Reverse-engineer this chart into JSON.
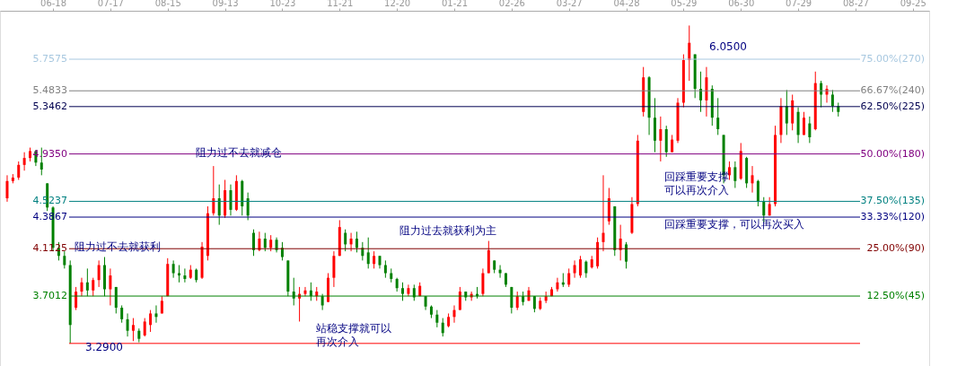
{
  "chart_data": {
    "type": "candlestick",
    "categories": [
      null,
      null,
      null,
      null,
      null,
      null,
      null,
      null,
      "06-18",
      null,
      null,
      null,
      null,
      null,
      null,
      null,
      null,
      null,
      "07-17",
      null,
      null,
      null,
      null,
      null,
      null,
      null,
      null,
      null,
      "08-15",
      null,
      null,
      null,
      null,
      null,
      null,
      null,
      null,
      null,
      "09-13",
      null,
      null,
      null,
      null,
      null,
      null,
      null,
      null,
      null,
      "10-23",
      null,
      null,
      null,
      null,
      null,
      null,
      null,
      null,
      null,
      "11-21",
      null,
      null,
      null,
      null,
      null,
      null,
      null,
      null,
      null,
      "12-20",
      null,
      null,
      null,
      null,
      null,
      null,
      null,
      null,
      null,
      "01-21",
      null,
      null,
      null,
      null,
      null,
      null,
      null,
      null,
      null,
      "02-26",
      null,
      null,
      null,
      null,
      null,
      null,
      null,
      null,
      null,
      "03-27",
      null,
      null,
      null,
      null,
      null,
      null,
      null,
      null,
      null,
      "04-28",
      null,
      null,
      null,
      null,
      null,
      null,
      null,
      null,
      null,
      "05-29",
      null,
      null,
      null,
      null,
      null,
      null,
      null,
      null,
      null,
      "06-30",
      null,
      null,
      null,
      null,
      null,
      null,
      null,
      null,
      null,
      "07-29",
      null,
      null,
      null,
      null,
      null,
      null,
      null,
      null,
      null,
      "08-27",
      null,
      null,
      null,
      null,
      null,
      null,
      null,
      null,
      null,
      "09-25",
      null
    ],
    "ohlc": [
      [
        4.55,
        4.75,
        4.52,
        4.7
      ],
      [
        4.7,
        4.76,
        4.68,
        4.73
      ],
      [
        4.73,
        4.87,
        4.71,
        4.84
      ],
      [
        4.84,
        4.95,
        4.79,
        4.9
      ],
      [
        4.9,
        4.99,
        4.87,
        4.96
      ],
      [
        4.96,
        4.97,
        4.83,
        4.86
      ],
      [
        4.86,
        4.99,
        4.75,
        4.8
      ],
      [
        4.68,
        4.68,
        4.44,
        4.47
      ],
      [
        4.47,
        4.48,
        4.09,
        4.12
      ],
      [
        4.12,
        4.17,
        4.01,
        4.05
      ],
      [
        4.05,
        4.09,
        3.94,
        3.97
      ],
      [
        3.97,
        4.01,
        3.29,
        3.45
      ],
      [
        3.6,
        3.78,
        3.58,
        3.74
      ],
      [
        3.74,
        3.86,
        3.7,
        3.82
      ],
      [
        3.82,
        3.94,
        3.7,
        3.75
      ],
      [
        3.75,
        3.86,
        3.7,
        3.84
      ],
      [
        3.84,
        4.01,
        3.78,
        3.97
      ],
      [
        3.97,
        4.04,
        3.7,
        3.76
      ],
      [
        3.76,
        3.94,
        3.62,
        3.88
      ],
      [
        3.78,
        3.78,
        3.55,
        3.6
      ],
      [
        3.6,
        3.62,
        3.47,
        3.5
      ],
      [
        3.5,
        3.55,
        3.35,
        3.4
      ],
      [
        3.4,
        3.51,
        3.31,
        3.45
      ],
      [
        3.4,
        3.42,
        3.3,
        3.33
      ],
      [
        3.36,
        3.51,
        3.35,
        3.48
      ],
      [
        3.45,
        3.58,
        3.39,
        3.55
      ],
      [
        3.55,
        3.62,
        3.47,
        3.52
      ],
      [
        3.55,
        3.7,
        3.55,
        3.66
      ],
      [
        3.7,
        4.03,
        3.7,
        3.98
      ],
      [
        3.98,
        4.01,
        3.86,
        3.9
      ],
      [
        3.9,
        3.97,
        3.82,
        3.88
      ],
      [
        3.88,
        3.94,
        3.82,
        3.85
      ],
      [
        3.86,
        3.97,
        3.85,
        3.93
      ],
      [
        3.93,
        3.94,
        3.82,
        3.84
      ],
      [
        3.86,
        4.17,
        3.85,
        4.13
      ],
      [
        4.05,
        4.48,
        4.01,
        4.42
      ],
      [
        4.42,
        4.83,
        4.4,
        4.55
      ],
      [
        4.55,
        4.67,
        4.32,
        4.4
      ],
      [
        4.4,
        4.71,
        4.38,
        4.62
      ],
      [
        4.62,
        4.67,
        4.4,
        4.45
      ],
      [
        4.45,
        4.75,
        4.44,
        4.7
      ],
      [
        4.7,
        4.71,
        4.4,
        4.48
      ],
      [
        4.55,
        4.6,
        4.36,
        4.4
      ],
      [
        4.25,
        4.28,
        4.05,
        4.1
      ],
      [
        4.1,
        4.26,
        4.09,
        4.2
      ],
      [
        4.2,
        4.25,
        4.09,
        4.12
      ],
      [
        4.12,
        4.23,
        4.09,
        4.19
      ],
      [
        4.19,
        4.21,
        4.08,
        4.1
      ],
      [
        4.12,
        4.17,
        4.01,
        4.04
      ],
      [
        4.01,
        4.01,
        3.7,
        3.74
      ],
      [
        3.74,
        3.86,
        3.62,
        3.68
      ],
      [
        3.68,
        3.78,
        3.48,
        3.72
      ],
      [
        3.72,
        3.78,
        3.7,
        3.75
      ],
      [
        3.75,
        3.82,
        3.66,
        3.7
      ],
      [
        3.7,
        3.78,
        3.66,
        3.74
      ],
      [
        3.7,
        3.72,
        3.58,
        3.62
      ],
      [
        3.65,
        3.9,
        3.65,
        3.86
      ],
      [
        3.86,
        4.09,
        3.78,
        4.05
      ],
      [
        4.05,
        4.36,
        4.05,
        4.3
      ],
      [
        4.25,
        4.28,
        4.09,
        4.15
      ],
      [
        4.15,
        4.25,
        4.09,
        4.2
      ],
      [
        4.2,
        4.26,
        4.08,
        4.12
      ],
      [
        4.12,
        4.17,
        4.01,
        4.05
      ],
      [
        4.08,
        4.21,
        3.94,
        3.98
      ],
      [
        3.98,
        4.09,
        3.94,
        4.05
      ],
      [
        4.05,
        4.05,
        3.94,
        3.97
      ],
      [
        3.97,
        4.01,
        3.86,
        3.9
      ],
      [
        3.9,
        3.94,
        3.82,
        3.85
      ],
      [
        3.85,
        3.86,
        3.74,
        3.77
      ],
      [
        3.77,
        3.82,
        3.66,
        3.72
      ],
      [
        3.72,
        3.8,
        3.7,
        3.77
      ],
      [
        3.77,
        3.8,
        3.66,
        3.69
      ],
      [
        3.7,
        3.82,
        3.7,
        3.79
      ],
      [
        3.7,
        3.7,
        3.58,
        3.61
      ],
      [
        3.61,
        3.62,
        3.51,
        3.54
      ],
      [
        3.54,
        3.58,
        3.43,
        3.47
      ],
      [
        3.47,
        3.51,
        3.35,
        3.38
      ],
      [
        3.44,
        3.55,
        3.43,
        3.52
      ],
      [
        3.52,
        3.62,
        3.47,
        3.58
      ],
      [
        3.58,
        3.78,
        3.58,
        3.74
      ],
      [
        3.74,
        3.74,
        3.66,
        3.69
      ],
      [
        3.69,
        3.74,
        3.66,
        3.72
      ],
      [
        3.72,
        3.78,
        3.68,
        3.7
      ],
      [
        3.72,
        3.94,
        3.7,
        3.9
      ],
      [
        3.9,
        4.18,
        3.9,
        4.1
      ],
      [
        4.01,
        4.01,
        3.9,
        3.93
      ],
      [
        3.93,
        3.97,
        3.86,
        3.9
      ],
      [
        3.9,
        3.9,
        3.78,
        3.8
      ],
      [
        3.78,
        3.78,
        3.55,
        3.6
      ],
      [
        3.6,
        3.74,
        3.58,
        3.7
      ],
      [
        3.7,
        3.74,
        3.62,
        3.65
      ],
      [
        3.66,
        3.78,
        3.66,
        3.75
      ],
      [
        3.7,
        3.7,
        3.56,
        3.59
      ],
      [
        3.59,
        3.69,
        3.58,
        3.66
      ],
      [
        3.66,
        3.74,
        3.64,
        3.7
      ],
      [
        3.7,
        3.78,
        3.7,
        3.76
      ],
      [
        3.76,
        3.86,
        3.74,
        3.82
      ],
      [
        3.82,
        3.9,
        3.78,
        3.8
      ],
      [
        3.8,
        3.94,
        3.78,
        3.9
      ],
      [
        3.9,
        4.01,
        3.86,
        3.97
      ],
      [
        3.88,
        4.05,
        3.86,
        4.02
      ],
      [
        4.0,
        4.01,
        3.86,
        3.9
      ],
      [
        3.95,
        4.05,
        3.94,
        4.02
      ],
      [
        3.96,
        4.21,
        3.94,
        4.17
      ],
      [
        4.17,
        4.75,
        4.09,
        4.25
      ],
      [
        4.35,
        4.64,
        4.32,
        4.55
      ],
      [
        4.48,
        4.48,
        4.05,
        4.1
      ],
      [
        4.1,
        4.32,
        4.01,
        4.2
      ],
      [
        4.15,
        4.17,
        3.94,
        4.0
      ],
      [
        4.25,
        4.56,
        4.24,
        4.5
      ],
      [
        4.5,
        5.1,
        4.48,
        5.05
      ],
      [
        5.3,
        5.69,
        5.26,
        5.6
      ],
      [
        5.6,
        5.61,
        5.1,
        5.25
      ],
      [
        5.25,
        5.42,
        4.95,
        5.05
      ],
      [
        5.05,
        5.26,
        4.87,
        5.15
      ],
      [
        5.15,
        5.18,
        4.91,
        4.95
      ],
      [
        4.95,
        5.1,
        4.95,
        5.06
      ],
      [
        5.05,
        5.42,
        5.03,
        5.38
      ],
      [
        5.38,
        5.8,
        5.34,
        5.75
      ],
      [
        5.75,
        6.05,
        5.57,
        5.9
      ],
      [
        5.8,
        5.8,
        5.42,
        5.5
      ],
      [
        5.5,
        5.65,
        5.3,
        5.4
      ],
      [
        5.4,
        5.69,
        5.26,
        5.6
      ],
      [
        5.5,
        5.53,
        5.18,
        5.25
      ],
      [
        5.25,
        5.42,
        5.1,
        5.15
      ],
      [
        5.1,
        5.1,
        4.68,
        4.75
      ],
      [
        4.75,
        4.87,
        4.71,
        4.82
      ],
      [
        4.82,
        4.87,
        4.64,
        4.7
      ],
      [
        4.72,
        5.03,
        4.71,
        4.96
      ],
      [
        4.9,
        4.91,
        4.64,
        4.68
      ],
      [
        4.68,
        4.83,
        4.6,
        4.75
      ],
      [
        4.7,
        4.71,
        4.48,
        4.52
      ],
      [
        4.52,
        4.56,
        4.34,
        4.4
      ],
      [
        4.4,
        4.56,
        4.4,
        4.5
      ],
      [
        4.5,
        5.18,
        4.48,
        5.1
      ],
      [
        5.1,
        5.42,
        5.03,
        5.35
      ],
      [
        5.35,
        5.49,
        5.1,
        5.2
      ],
      [
        5.2,
        5.45,
        5.14,
        5.4
      ],
      [
        5.3,
        5.34,
        5.03,
        5.1
      ],
      [
        5.1,
        5.3,
        5.1,
        5.25
      ],
      [
        5.2,
        5.26,
        5.03,
        5.08
      ],
      [
        5.15,
        5.65,
        5.14,
        5.55
      ],
      [
        5.55,
        5.57,
        5.34,
        5.45
      ],
      [
        5.45,
        5.53,
        5.38,
        5.5
      ],
      [
        5.45,
        5.49,
        5.3,
        5.35
      ],
      [
        5.35,
        5.38,
        5.26,
        5.3
      ],
      null,
      null,
      null,
      null,
      null,
      null,
      null,
      null,
      null,
      null,
      null,
      null,
      null,
      null
    ],
    "ref_lines": [
      {
        "axis": "y",
        "value": 5.7575,
        "label": "5.7575",
        "color": "#a8c8e0"
      },
      {
        "axis": "y",
        "value": 5.4833,
        "label": "5.4833",
        "color": "#808080"
      },
      {
        "axis": "y",
        "value": 5.3462,
        "label": "5.3462",
        "color": "#000050"
      },
      {
        "axis": "y",
        "value": 4.935,
        "label": "4.9350",
        "color": "#800080"
      },
      {
        "axis": "y",
        "value": 4.5237,
        "label": "4.5237",
        "color": "#008080"
      },
      {
        "axis": "y",
        "value": 4.3867,
        "label": "4.3867",
        "color": "#000080"
      },
      {
        "axis": "y",
        "value": 4.1125,
        "label": "4.1125",
        "color": "#800000"
      },
      {
        "axis": "y",
        "value": 3.7012,
        "label": "3.7012",
        "color": "#008000"
      },
      {
        "axis": "y",
        "value": 3.29,
        "color": "#ff0000"
      }
    ],
    "annotations": [
      "阻力过不去就获利",
      "阻力过不去就减仓",
      "站稳支撑就可以再次介入",
      "阻力过去就获利为主",
      "回踩重要支撑可以再次介入",
      "回踩重要支撑，可以再次买入",
      "6.0500",
      "3.2900",
      "75.00%(270)",
      "66.67%(240)",
      "62.50%(225)",
      "50.00%(180)",
      "37.50%(135)",
      "33.33%(120)",
      "25.00%(90)",
      "12.50%(45)"
    ]
  }
}
